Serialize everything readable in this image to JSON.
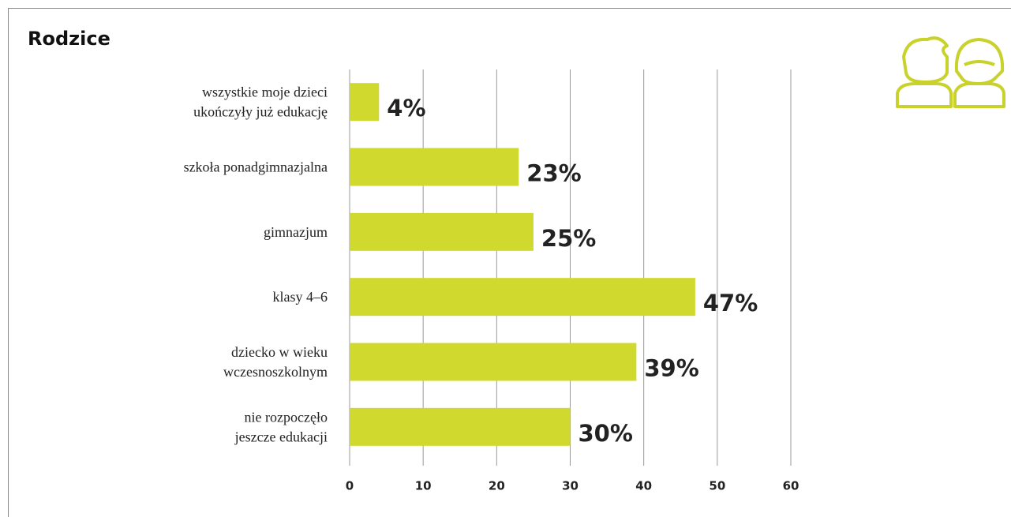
{
  "chart_data": {
    "type": "bar",
    "orientation": "horizontal",
    "title": "Rodzice",
    "categories": [
      "wszystkie moje dzieci\nukończyły już edukację",
      "szkoła ponadgimnazjalna",
      "gimnazjum",
      "klasy 4–6",
      "dziecko w wieku\nwczesnoszkolnym",
      "nie rozpoczęło\njeszcze edukacji"
    ],
    "values": [
      4,
      23,
      25,
      47,
      39,
      30
    ],
    "value_labels": [
      "4%",
      "23%",
      "25%",
      "47%",
      "39%",
      "30%"
    ],
    "color": "#d0d92d",
    "xlim": [
      0,
      60
    ],
    "xticks": [
      0,
      10,
      20,
      30,
      40,
      50,
      60
    ],
    "grid": true
  }
}
